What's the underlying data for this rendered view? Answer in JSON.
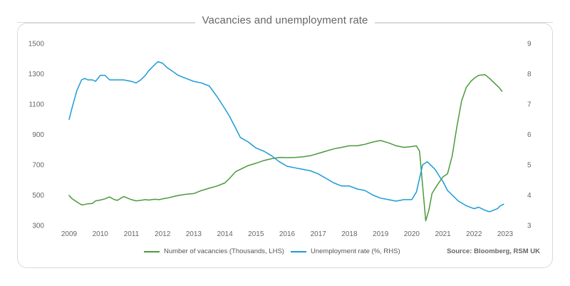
{
  "chart_data": {
    "type": "line",
    "title": "Vacancies and unemployment rate",
    "source": "Source: Bloomberg, RSM UK",
    "x_ticks": [
      "2009",
      "2010",
      "2011",
      "2012",
      "2013",
      "2014",
      "2015",
      "2016",
      "2017",
      "2018",
      "2019",
      "2020",
      "2021",
      "2022",
      "2023"
    ],
    "xlim": [
      2009,
      2023
    ],
    "y_left": {
      "lim": [
        300,
        1500
      ],
      "ticks": [
        "300",
        "500",
        "700",
        "900",
        "1100",
        "1300",
        "1500"
      ]
    },
    "y_right": {
      "lim": [
        3,
        9
      ],
      "ticks": [
        "3",
        "4",
        "5",
        "6",
        "7",
        "8",
        "9"
      ]
    },
    "colors": {
      "vacancies": "#4a9a3a",
      "unemployment": "#1b9bd6"
    },
    "series": [
      {
        "name": "Number of vacancies (Thousands, LHS)",
        "axis": "left",
        "x": [
          2009.0,
          2009.1,
          2009.25,
          2009.4,
          2009.5,
          2009.6,
          2009.75,
          2009.85,
          2010.0,
          2010.15,
          2010.3,
          2010.45,
          2010.55,
          2010.65,
          2010.75,
          2010.85,
          2011.0,
          2011.15,
          2011.3,
          2011.45,
          2011.55,
          2011.75,
          2011.9,
          2012.0,
          2012.15,
          2012.3,
          2012.5,
          2012.75,
          2013.0,
          2013.25,
          2013.5,
          2013.75,
          2014.0,
          2014.15,
          2014.35,
          2014.5,
          2014.75,
          2015.0,
          2015.25,
          2015.5,
          2015.75,
          2016.0,
          2016.25,
          2016.5,
          2016.75,
          2017.0,
          2017.25,
          2017.5,
          2017.75,
          2018.0,
          2018.25,
          2018.5,
          2018.75,
          2019.0,
          2019.25,
          2019.5,
          2019.75,
          2020.0,
          2020.15,
          2020.25,
          2020.35,
          2020.45,
          2020.55,
          2020.65,
          2020.8,
          2021.0,
          2021.15,
          2021.3,
          2021.45,
          2021.6,
          2021.75,
          2021.9,
          2022.0,
          2022.15,
          2022.35,
          2022.5,
          2022.65,
          2022.8,
          2022.9
        ],
        "values": [
          497,
          475,
          455,
          435,
          438,
          442,
          445,
          462,
          467,
          475,
          488,
          470,
          465,
          478,
          490,
          482,
          470,
          462,
          465,
          470,
          467,
          472,
          470,
          475,
          480,
          488,
          497,
          505,
          510,
          530,
          545,
          560,
          580,
          610,
          655,
          670,
          695,
          710,
          728,
          740,
          748,
          747,
          748,
          752,
          760,
          775,
          790,
          805,
          815,
          825,
          825,
          835,
          850,
          860,
          845,
          825,
          815,
          820,
          825,
          790,
          560,
          330,
          400,
          510,
          560,
          620,
          640,
          760,
          950,
          1120,
          1210,
          1250,
          1270,
          1290,
          1295,
          1270,
          1240,
          1210,
          1185
        ]
      },
      {
        "name": "Unemployment rate (%, RHS)",
        "axis": "right",
        "x": [
          2009.0,
          2009.1,
          2009.25,
          2009.4,
          2009.5,
          2009.6,
          2009.75,
          2009.85,
          2010.0,
          2010.15,
          2010.3,
          2010.5,
          2010.75,
          2011.0,
          2011.15,
          2011.3,
          2011.45,
          2011.55,
          2011.75,
          2011.85,
          2012.0,
          2012.15,
          2012.3,
          2012.5,
          2012.75,
          2013.0,
          2013.25,
          2013.5,
          2013.75,
          2014.0,
          2014.15,
          2014.35,
          2014.5,
          2014.75,
          2015.0,
          2015.25,
          2015.5,
          2015.75,
          2016.0,
          2016.25,
          2016.5,
          2016.75,
          2017.0,
          2017.25,
          2017.5,
          2017.75,
          2018.0,
          2018.25,
          2018.5,
          2018.75,
          2019.0,
          2019.25,
          2019.5,
          2019.75,
          2020.0,
          2020.15,
          2020.35,
          2020.5,
          2020.75,
          2020.9,
          2021.0,
          2021.15,
          2021.3,
          2021.5,
          2021.75,
          2022.0,
          2022.15,
          2022.35,
          2022.5,
          2022.75,
          2022.85,
          2022.95
        ],
        "values": [
          6.5,
          6.9,
          7.45,
          7.8,
          7.85,
          7.8,
          7.8,
          7.75,
          7.95,
          7.95,
          7.8,
          7.8,
          7.8,
          7.75,
          7.7,
          7.8,
          7.95,
          8.1,
          8.3,
          8.4,
          8.35,
          8.2,
          8.1,
          7.95,
          7.85,
          7.75,
          7.7,
          7.6,
          7.25,
          6.85,
          6.6,
          6.2,
          5.9,
          5.75,
          5.55,
          5.45,
          5.3,
          5.1,
          4.95,
          4.9,
          4.85,
          4.8,
          4.7,
          4.55,
          4.4,
          4.3,
          4.3,
          4.2,
          4.15,
          4.0,
          3.9,
          3.85,
          3.8,
          3.85,
          3.85,
          4.1,
          5.0,
          5.1,
          4.85,
          4.6,
          4.45,
          4.15,
          4.0,
          3.8,
          3.65,
          3.55,
          3.6,
          3.5,
          3.45,
          3.55,
          3.65,
          3.7
        ]
      }
    ]
  }
}
